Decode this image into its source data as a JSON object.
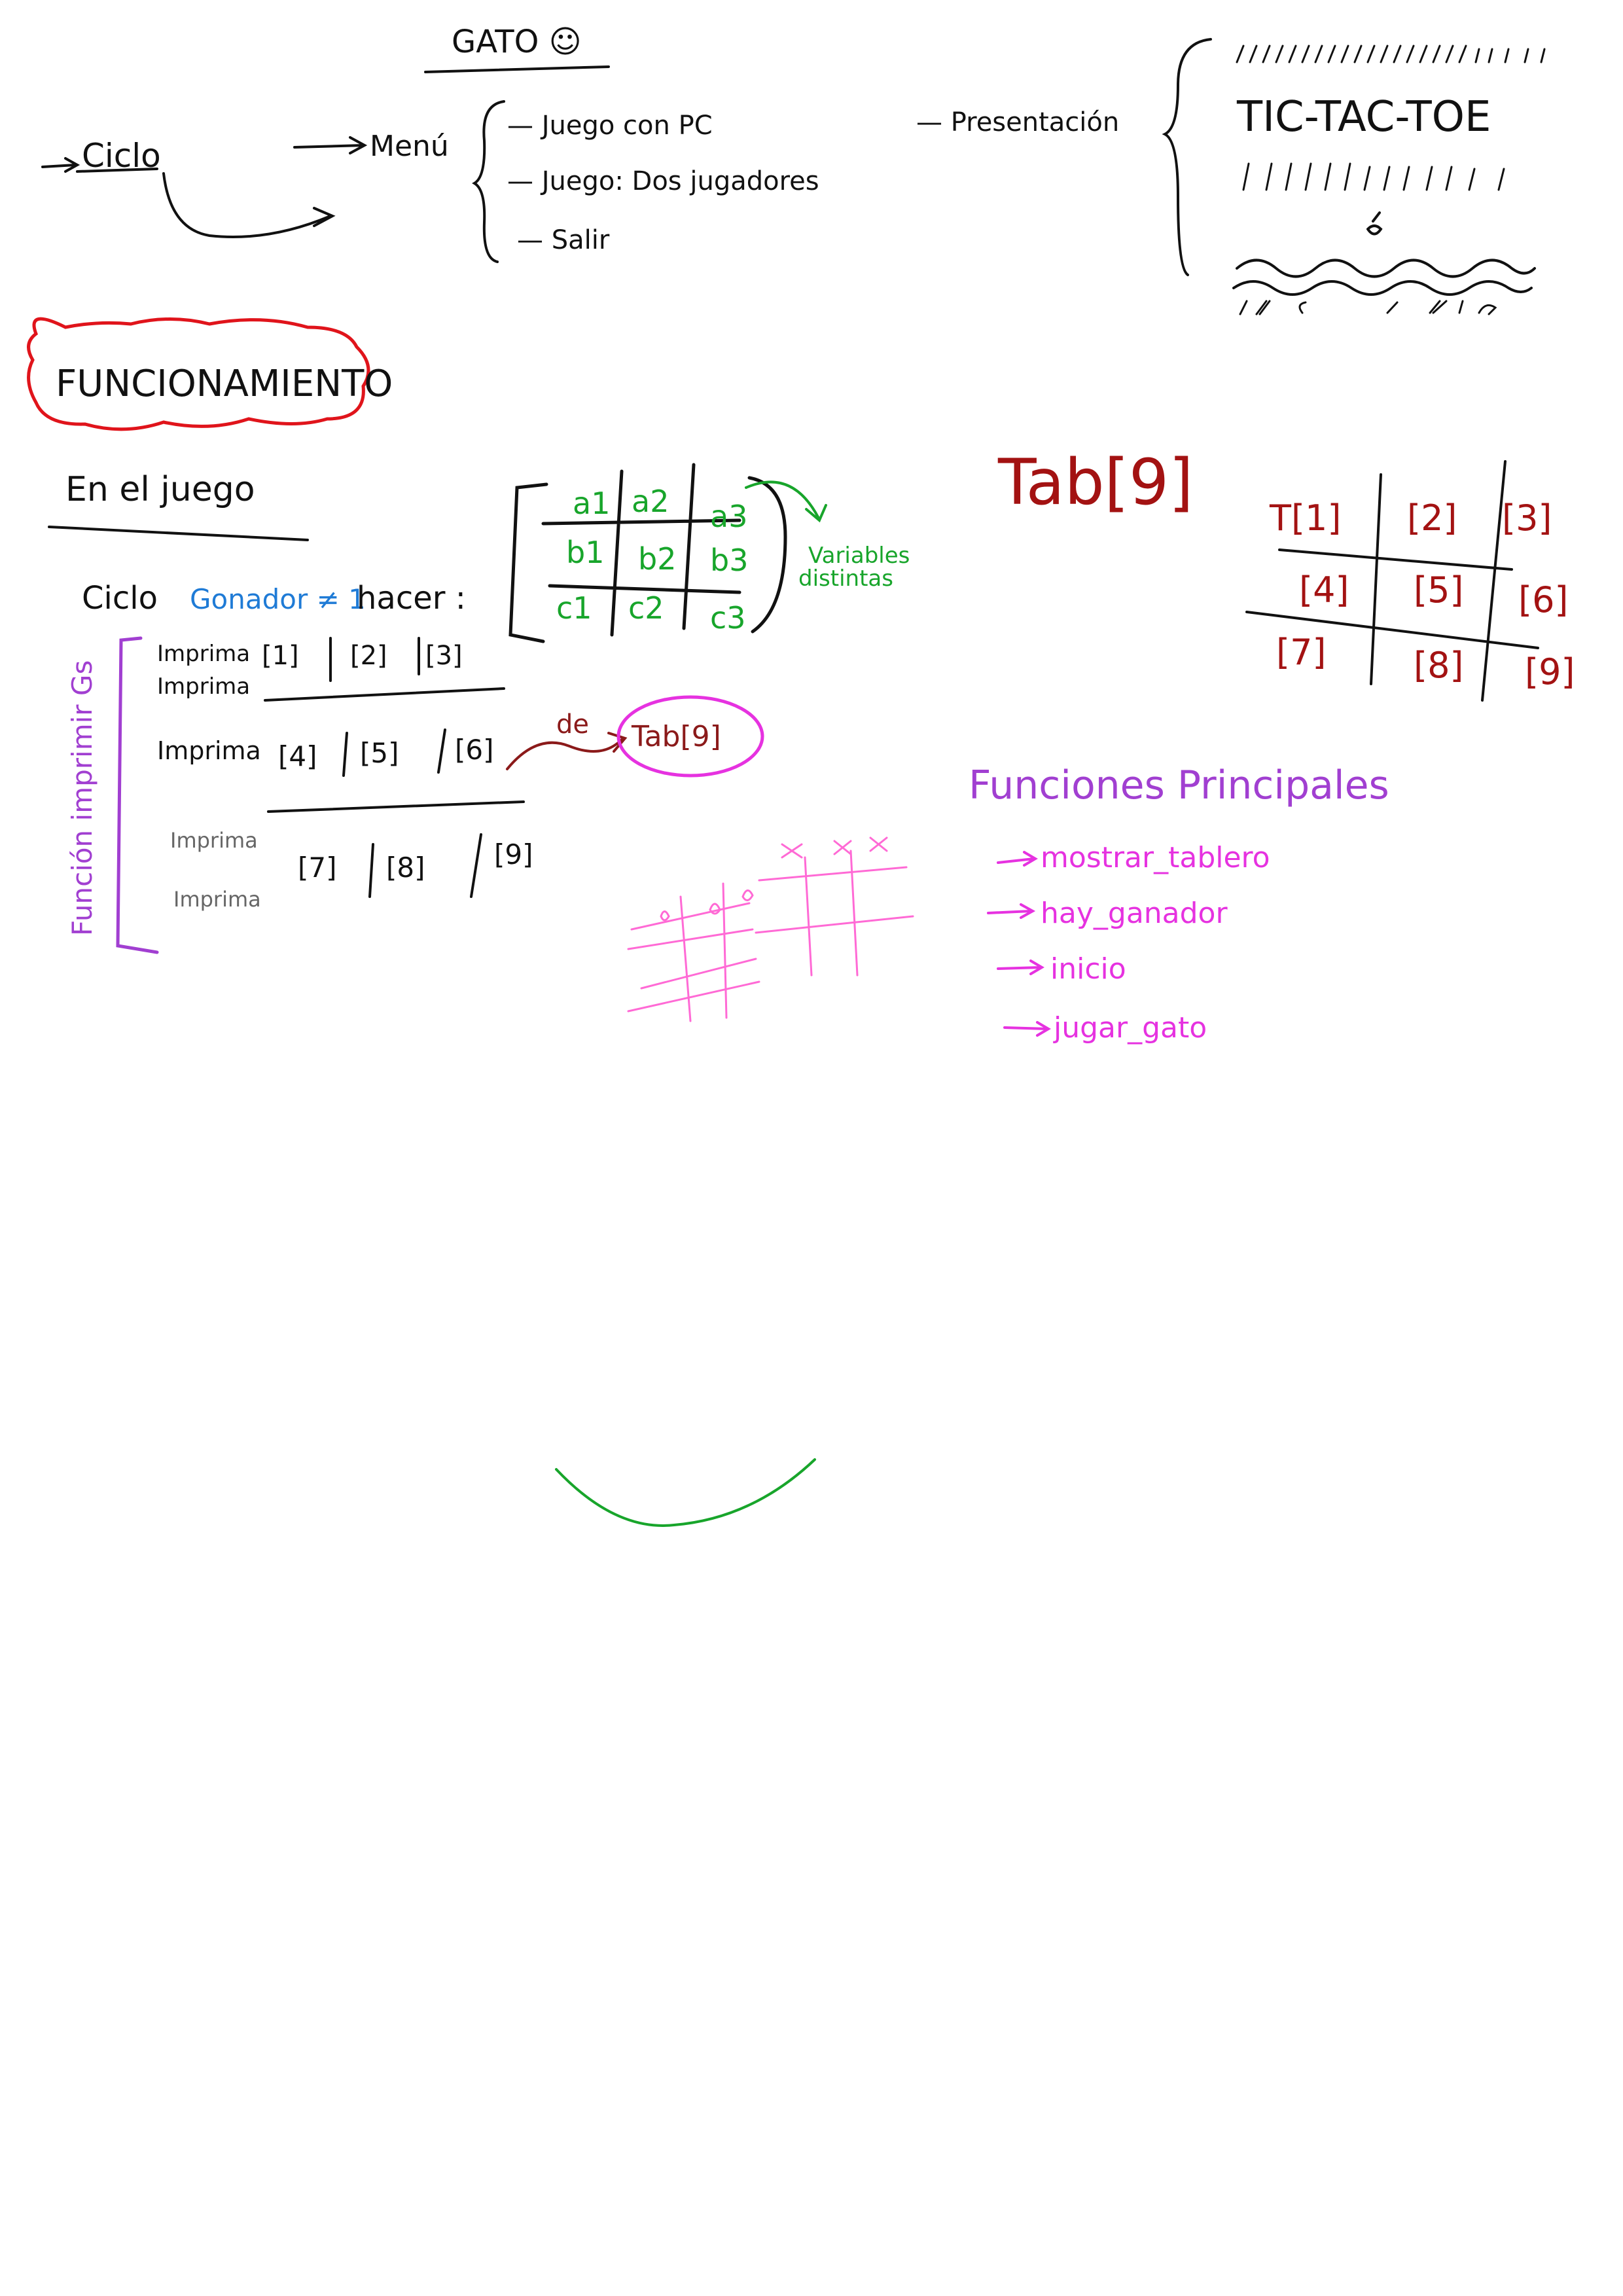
{
  "colors": {
    "ink": "#111111",
    "gray": "#666666",
    "red": "#e0141b",
    "dark_red": "#a31212",
    "green": "#18a52b",
    "blue": "#1f7bd6",
    "purple": "#a13fd1",
    "magenta": "#e632e0"
  },
  "header": {
    "title": "GATO ☺",
    "cycle_label": "Ciclo",
    "menu_label": "Menú",
    "menu_options": [
      "— Juego con PC",
      "— Juego: Dos jugadores",
      "— Salir"
    ],
    "presentation_label": "— Presentación",
    "banner_text": "TIC-TAC-TOE"
  },
  "section_title": "FUNCIONAMIENTO",
  "game_section": {
    "heading": "En el juego",
    "loop_prefix": "Ciclo",
    "loop_var": "Gonador ≠ 1",
    "loop_suffix": "hacer :",
    "print_rows": [
      {
        "label": "Imprima",
        "cells": [
          "[1]",
          "[2]",
          "[3]"
        ]
      },
      {
        "label": "Imprima",
        "cells": []
      },
      {
        "label": "Imprima",
        "cells": [
          "[4]",
          "[5]",
          "[6]"
        ]
      },
      {
        "label": "Imprima",
        "cells": []
      },
      {
        "label": "Imprima",
        "cells": [
          "[7]",
          "[8]",
          "[9]"
        ]
      }
    ],
    "side_label": "Función imprimir Gs",
    "arrow_label": "de",
    "tab_circle": "Tab[9]"
  },
  "variable_grid": {
    "cells": [
      "a1",
      "a2",
      "a3",
      "b1",
      "b2",
      "b3",
      "c1",
      "c2",
      "c3"
    ],
    "note_line1": "Variables",
    "note_line2": "distintas"
  },
  "tab_array": {
    "title": "Tab[9]",
    "cells": [
      "T[1]",
      "[2]",
      "[3]",
      "[4]",
      "[5]",
      "[6]",
      "[7]",
      "[8]",
      "[9]"
    ]
  },
  "main_functions": {
    "title": "Funciones Principales",
    "items": [
      "mostrar_tablero",
      "hay_ganador",
      "inicio",
      "jugar_gato"
    ]
  }
}
